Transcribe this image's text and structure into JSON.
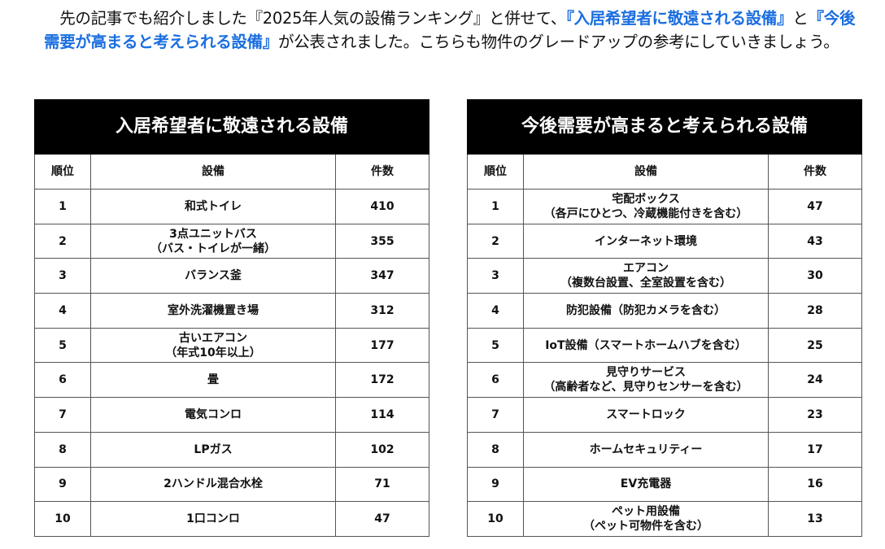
{
  "intro": {
    "p1": "　先の記事でも紹介しました『2025年人気の設備ランキング』と併せて、",
    "h1": "『入居希望者に敬遠される設備』",
    "p2": "と",
    "h2": "『今後需要が高まると考えられる設備』",
    "p3": "が公表されました。こちらも物件のグレードアップの参考にしていきましょう。"
  },
  "headers": {
    "rank": "順位",
    "equipment": "設備",
    "count": "件数"
  },
  "left": {
    "title": "入居希望者に敬遠される設備",
    "rows": [
      {
        "rank": "1",
        "name": "和式トイレ",
        "sub": "",
        "count": "410"
      },
      {
        "rank": "2",
        "name": "3点ユニットバス",
        "sub": "（バス・トイレが一緒）",
        "count": "355"
      },
      {
        "rank": "3",
        "name": "バランス釜",
        "sub": "",
        "count": "347"
      },
      {
        "rank": "4",
        "name": "室外洗濯機置き場",
        "sub": "",
        "count": "312"
      },
      {
        "rank": "5",
        "name": "古いエアコン",
        "sub": "（年式10年以上）",
        "count": "177"
      },
      {
        "rank": "6",
        "name": "畳",
        "sub": "",
        "count": "172"
      },
      {
        "rank": "7",
        "name": "電気コンロ",
        "sub": "",
        "count": "114"
      },
      {
        "rank": "8",
        "name": "LPガス",
        "sub": "",
        "count": "102"
      },
      {
        "rank": "9",
        "name": "2ハンドル混合水栓",
        "sub": "",
        "count": "71"
      },
      {
        "rank": "10",
        "name": "1口コンロ",
        "sub": "",
        "count": "47"
      }
    ]
  },
  "right": {
    "title": "今後需要が高まると考えられる設備",
    "rows": [
      {
        "rank": "1",
        "name": "宅配ボックス",
        "sub": "（各戸にひとつ、冷蔵機能付きを含む）",
        "count": "47"
      },
      {
        "rank": "2",
        "name": "インターネット環境",
        "sub": "",
        "count": "43"
      },
      {
        "rank": "3",
        "name": "エアコン",
        "sub": "（複数台設置、全室設置を含む）",
        "count": "30"
      },
      {
        "rank": "4",
        "name": "防犯設備（防犯カメラを含む）",
        "sub": "",
        "count": "28"
      },
      {
        "rank": "5",
        "name": "IoT設備（スマートホームハブを含む）",
        "sub": "",
        "count": "25"
      },
      {
        "rank": "6",
        "name": "見守りサービス",
        "sub": "（高齢者など、見守りセンサーを含む）",
        "count": "24"
      },
      {
        "rank": "7",
        "name": "スマートロック",
        "sub": "",
        "count": "23"
      },
      {
        "rank": "8",
        "name": "ホームセキュリティー",
        "sub": "",
        "count": "17"
      },
      {
        "rank": "9",
        "name": "EV充電器",
        "sub": "",
        "count": "16"
      },
      {
        "rank": "10",
        "name": "ペット用設備",
        "sub": "（ペット可物件を含む）",
        "count": "13"
      }
    ]
  }
}
